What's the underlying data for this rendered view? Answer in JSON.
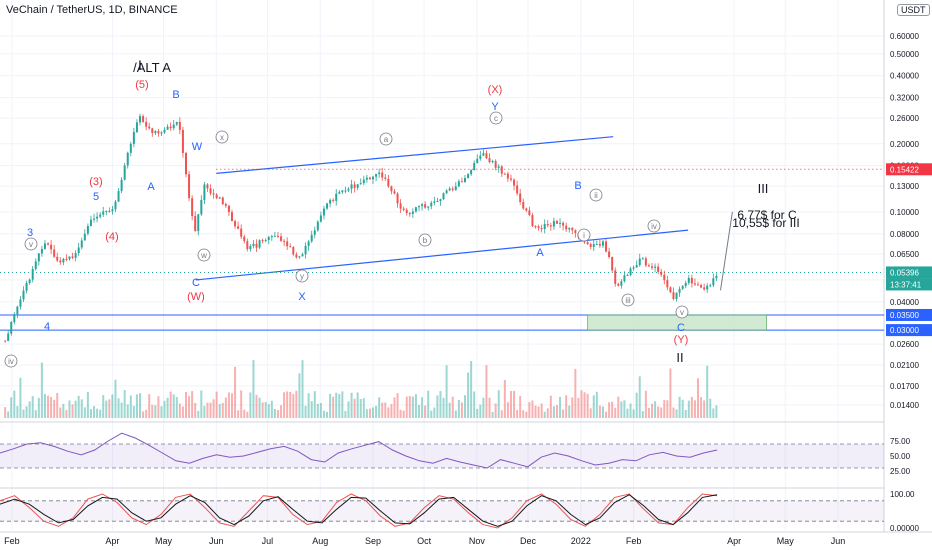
{
  "header": {
    "title": "VeChain / TetherUS, 1D, BINANCE",
    "currency": "USDT"
  },
  "colors": {
    "up": "#26a69a",
    "down": "#ef5350",
    "line": "#2962ff",
    "box": "#c8e6c9",
    "rsi": "#7e57c2",
    "stoch_k": "#ef5350",
    "stoch_d": "#131722",
    "price_tag": "#26a69a",
    "level_tag": "#2962ff",
    "red_tag": "#f23645"
  },
  "chart_data": [
    {
      "type": "line",
      "title": "VeChain / TetherUS, 1D, BINANCE",
      "scale": "log",
      "ylim": [
        0.012,
        0.7
      ],
      "x_range": [
        "2021-01-25",
        "2022-06-28"
      ],
      "y_ticks": [
        "0.60000",
        "0.50000",
        "0.40000",
        "0.32000",
        "0.26000",
        "0.20000",
        "0.16000",
        "0.13000",
        "0.10000",
        "0.08000",
        "0.06500",
        "0.05000",
        "0.04000",
        "0.02600",
        "0.02100",
        "0.01700",
        "0.01400"
      ],
      "x_ticks": [
        "Feb",
        "Apr",
        "May",
        "Jun",
        "Jul",
        "Aug",
        "Sep",
        "Oct",
        "Nov",
        "Dec",
        "2022",
        "Feb",
        "Apr",
        "May",
        "Jun"
      ],
      "series": [
        {
          "values": [
            [
              "2021-01-28",
              0.027
            ],
            [
              "2021-02-05",
              0.04
            ],
            [
              "2021-02-12",
              0.052
            ],
            [
              "2021-02-20",
              0.075
            ],
            [
              "2021-03-01",
              0.06
            ],
            [
              "2021-03-10",
              0.065
            ],
            [
              "2021-03-20",
              0.095
            ],
            [
              "2021-04-01",
              0.1
            ],
            [
              "2021-04-10",
              0.18
            ],
            [
              "2021-04-17",
              0.27
            ],
            [
              "2021-04-25",
              0.22
            ],
            [
              "2021-05-05",
              0.24
            ],
            [
              "2021-05-10",
              0.25
            ],
            [
              "2021-05-19",
              0.08
            ],
            [
              "2021-05-25",
              0.13
            ],
            [
              "2021-06-05",
              0.11
            ],
            [
              "2021-06-20",
              0.068
            ],
            [
              "2021-07-05",
              0.08
            ],
            [
              "2021-07-20",
              0.062
            ],
            [
              "2021-08-05",
              0.11
            ],
            [
              "2021-08-20",
              0.13
            ],
            [
              "2021-09-05",
              0.15
            ],
            [
              "2021-09-20",
              0.098
            ],
            [
              "2021-10-05",
              0.11
            ],
            [
              "2021-10-20",
              0.13
            ],
            [
              "2021-11-05",
              0.18
            ],
            [
              "2021-11-20",
              0.14
            ],
            [
              "2021-12-05",
              0.085
            ],
            [
              "2021-12-20",
              0.09
            ],
            [
              "2022-01-05",
              0.07
            ],
            [
              "2022-01-15",
              0.072
            ],
            [
              "2022-01-22",
              0.047
            ],
            [
              "2022-02-05",
              0.062
            ],
            [
              "2022-02-15",
              0.055
            ],
            [
              "2022-02-24",
              0.042
            ],
            [
              "2022-03-05",
              0.05
            ],
            [
              "2022-03-15",
              0.045
            ],
            [
              "2022-03-22",
              0.052
            ]
          ]
        }
      ],
      "price_tags": [
        {
          "label": "0.15422",
          "value": 0.15422,
          "color": "red"
        },
        {
          "label": "0.05396",
          "value": 0.05396,
          "color": "green"
        },
        {
          "label": "13:37:41",
          "value": 0.05396,
          "color": "green"
        },
        {
          "label": "0.03500",
          "value": 0.035,
          "color": "blue"
        },
        {
          "label": "0.03000",
          "value": 0.03,
          "color": "blue"
        }
      ],
      "annotations": [
        {
          "text": "I",
          "color": "black"
        },
        {
          "text": "/ALT A",
          "color": "black"
        },
        {
          "text": "(5)",
          "color": "red"
        },
        {
          "text": "B",
          "color": "blue"
        },
        {
          "text": "W",
          "color": "blue"
        },
        {
          "text": "x",
          "color": "gray"
        },
        {
          "text": "A",
          "color": "blue"
        },
        {
          "text": "5",
          "color": "blue"
        },
        {
          "text": "(3)",
          "color": "red"
        },
        {
          "text": "(4)",
          "color": "red"
        },
        {
          "text": "3",
          "color": "blue"
        },
        {
          "text": "v",
          "color": "gray"
        },
        {
          "text": "4",
          "color": "blue"
        },
        {
          "text": "iv",
          "color": "gray"
        },
        {
          "text": "C",
          "color": "blue"
        },
        {
          "text": "(W)",
          "color": "red"
        },
        {
          "text": "w",
          "color": "gray"
        },
        {
          "text": "y",
          "color": "gray"
        },
        {
          "text": "X",
          "color": "blue"
        },
        {
          "text": "a",
          "color": "gray"
        },
        {
          "text": "b",
          "color": "gray"
        },
        {
          "text": "(X)",
          "color": "red"
        },
        {
          "text": "Y",
          "color": "blue"
        },
        {
          "text": "c",
          "color": "gray"
        },
        {
          "text": "B",
          "color": "blue"
        },
        {
          "text": "ii",
          "color": "gray"
        },
        {
          "text": "A",
          "color": "blue"
        },
        {
          "text": "i",
          "color": "gray"
        },
        {
          "text": "iv",
          "color": "gray"
        },
        {
          "text": "iii",
          "color": "gray"
        },
        {
          "text": "v",
          "color": "gray"
        },
        {
          "text": "C",
          "color": "blue"
        },
        {
          "text": "(Y)",
          "color": "red"
        },
        {
          "text": "II",
          "color": "black"
        },
        {
          "text": "III",
          "color": "black"
        },
        {
          "text": "6,77$ for C",
          "color": "black"
        },
        {
          "text": "10,55$ for III",
          "color": "black"
        }
      ]
    },
    {
      "type": "line",
      "title": "RSI",
      "ylim": [
        0,
        100
      ],
      "y_ticks": [
        "75.00",
        "50.00",
        "25.00"
      ],
      "bands": [
        70,
        30
      ],
      "series": [
        {
          "values": [
            55,
            62,
            70,
            72,
            66,
            58,
            52,
            60,
            75,
            88,
            80,
            68,
            55,
            42,
            38,
            46,
            52,
            48,
            50,
            56,
            62,
            66,
            58,
            44,
            40,
            55,
            62,
            68,
            74,
            60,
            50,
            42,
            38,
            46,
            40,
            35,
            30,
            44,
            38,
            32,
            48,
            55,
            50,
            42,
            35,
            38,
            44,
            42,
            52,
            56,
            50,
            48,
            55,
            60
          ]
        }
      ]
    },
    {
      "type": "line",
      "title": "Stoch RSI",
      "ylim": [
        0,
        100
      ],
      "y_ticks": [
        "100.00",
        "0.00000"
      ],
      "bands": [
        80,
        20
      ],
      "series": [
        {
          "name": "K",
          "values": [
            80,
            95,
            60,
            20,
            5,
            30,
            85,
            100,
            75,
            30,
            10,
            40,
            90,
            100,
            60,
            15,
            5,
            50,
            95,
            90,
            40,
            10,
            20,
            75,
            100,
            80,
            35,
            5,
            15,
            60,
            95,
            85,
            45,
            10,
            0,
            30,
            80,
            100,
            70,
            25,
            5,
            40,
            90,
            100,
            55,
            15,
            10,
            60,
            100,
            95
          ]
        },
        {
          "name": "D",
          "values": [
            70,
            85,
            70,
            40,
            15,
            25,
            65,
            90,
            85,
            45,
            20,
            30,
            70,
            95,
            75,
            30,
            10,
            35,
            80,
            92,
            55,
            20,
            15,
            55,
            90,
            88,
            50,
            15,
            12,
            45,
            85,
            90,
            55,
            20,
            5,
            20,
            65,
            95,
            80,
            40,
            10,
            30,
            75,
            98,
            65,
            25,
            10,
            45,
            90,
            98
          ]
        }
      ]
    }
  ],
  "time_axis": [
    "Feb",
    "Apr",
    "May",
    "Jun",
    "Jul",
    "Aug",
    "Sep",
    "Oct",
    "Nov",
    "Dec",
    "2022",
    "Feb",
    "Apr",
    "May",
    "Jun"
  ]
}
